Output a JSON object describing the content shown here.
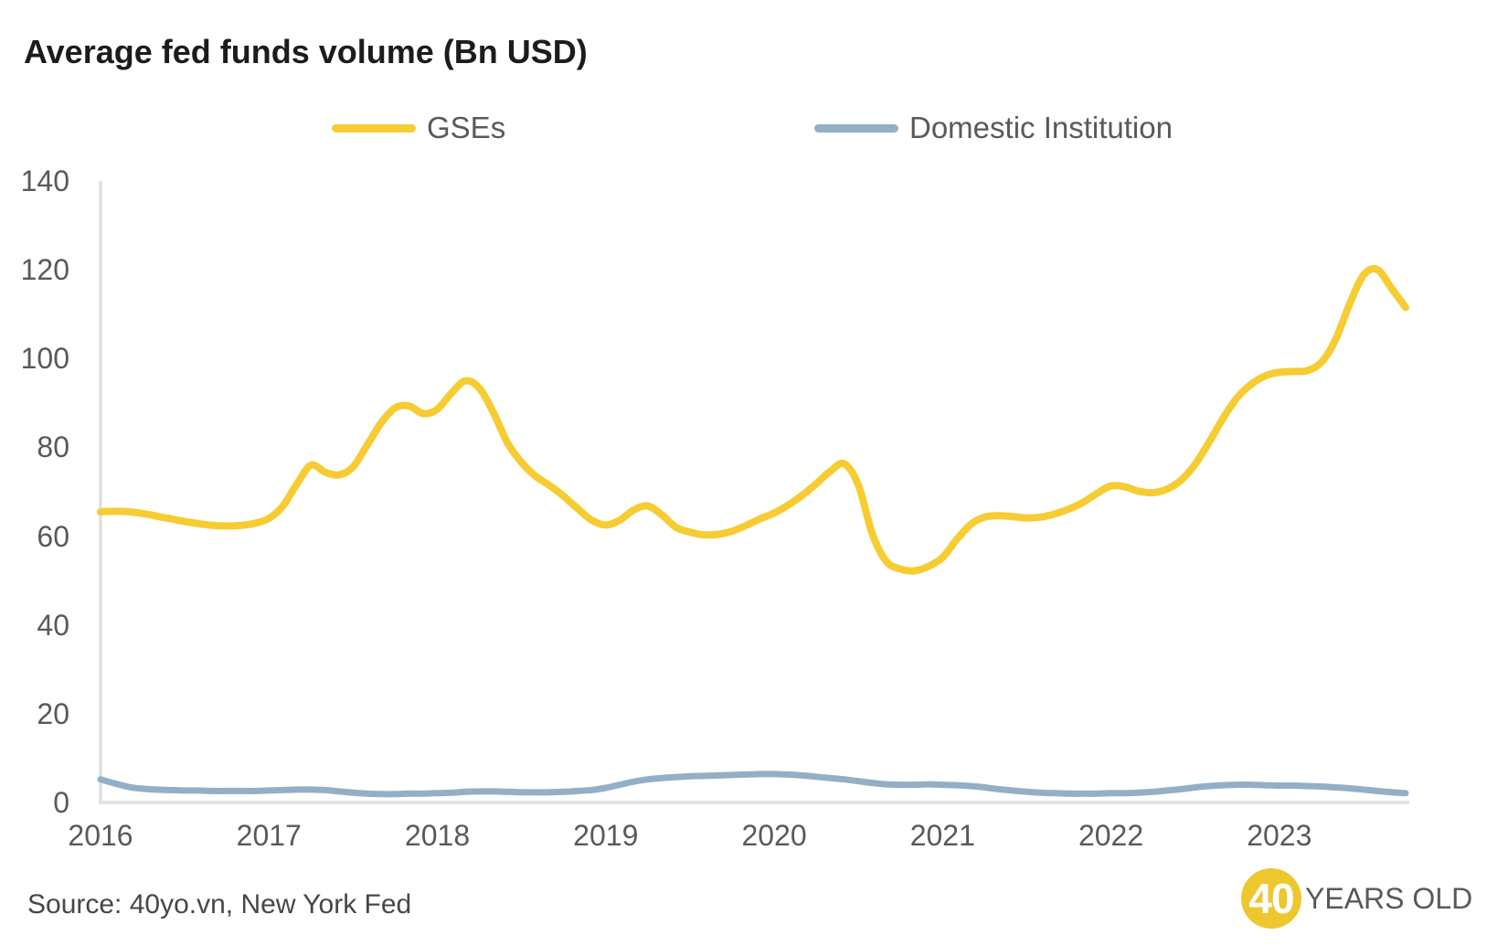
{
  "title": "Average fed funds volume (Bn USD)",
  "source": "Source: 40yo.vn, New York Fed",
  "logo": {
    "circle_text": "40",
    "text": "YEARS OLD",
    "circle_color": "#eec72f"
  },
  "colors": {
    "axis_line": "#dcdcdc",
    "baseline": "#e3e3e3",
    "label_gray": "#595959"
  },
  "chart_data": {
    "type": "line",
    "title": "Average fed funds volume (Bn USD)",
    "x_unit": "monthly",
    "x_range": [
      "2016-01",
      "2023-10"
    ],
    "x_tick_labels": [
      "2016",
      "2017",
      "2018",
      "2019",
      "2020",
      "2021",
      "2022",
      "2023"
    ],
    "ylim": [
      0,
      140
    ],
    "y_ticks": [
      0,
      20,
      40,
      60,
      80,
      100,
      120,
      140
    ],
    "grid": false,
    "legend_position": "top",
    "series": [
      {
        "name": "GSEs",
        "color": "#f6cc32",
        "values": [
          65.5,
          65.6,
          65.5,
          65.1,
          64.5,
          63.9,
          63.3,
          62.8,
          62.4,
          62.3,
          62.4,
          62.9,
          64.0,
          66.8,
          71.8,
          76.0,
          74.4,
          73.8,
          75.6,
          80.5,
          85.5,
          88.9,
          89.3,
          87.6,
          88.6,
          92.2,
          95.0,
          93.3,
          87.8,
          81.0,
          76.6,
          73.5,
          71.4,
          69.0,
          66.2,
          63.6,
          62.5,
          63.6,
          65.9,
          66.8,
          64.8,
          62.0,
          60.9,
          60.3,
          60.4,
          61.1,
          62.4,
          63.9,
          65.2,
          67.0,
          69.2,
          71.8,
          74.6,
          76.3,
          71.5,
          60.5,
          54.3,
          52.6,
          52.2,
          53.2,
          55.2,
          59.2,
          62.6,
          64.3,
          64.6,
          64.4,
          64.1,
          64.3,
          65.0,
          66.1,
          67.6,
          69.6,
          71.3,
          71.1,
          70.1,
          69.8,
          70.6,
          72.6,
          76.2,
          81.2,
          86.6,
          91.2,
          94.2,
          96.1,
          96.9,
          97.1,
          97.3,
          99.2,
          104.2,
          112.2,
          118.8,
          120.0,
          115.8,
          111.5
        ]
      },
      {
        "name": "Domestic Institution",
        "color": "#93afc7",
        "values": [
          5.2,
          4.3,
          3.5,
          3.1,
          2.9,
          2.8,
          2.7,
          2.7,
          2.6,
          2.6,
          2.6,
          2.6,
          2.7,
          2.8,
          2.9,
          2.9,
          2.8,
          2.5,
          2.2,
          2.0,
          1.9,
          1.9,
          2.0,
          2.0,
          2.1,
          2.2,
          2.4,
          2.5,
          2.5,
          2.4,
          2.3,
          2.3,
          2.3,
          2.4,
          2.6,
          2.8,
          3.3,
          4.0,
          4.7,
          5.2,
          5.5,
          5.7,
          5.9,
          6.0,
          6.1,
          6.2,
          6.3,
          6.4,
          6.4,
          6.3,
          6.1,
          5.8,
          5.5,
          5.2,
          4.8,
          4.4,
          4.1,
          4.0,
          4.0,
          4.1,
          4.0,
          3.9,
          3.7,
          3.4,
          3.0,
          2.7,
          2.4,
          2.2,
          2.1,
          2.0,
          2.0,
          2.0,
          2.1,
          2.1,
          2.2,
          2.4,
          2.7,
          3.0,
          3.4,
          3.7,
          3.9,
          4.0,
          4.0,
          3.9,
          3.8,
          3.8,
          3.7,
          3.6,
          3.4,
          3.2,
          2.9,
          2.6,
          2.3,
          2.1
        ]
      }
    ]
  }
}
